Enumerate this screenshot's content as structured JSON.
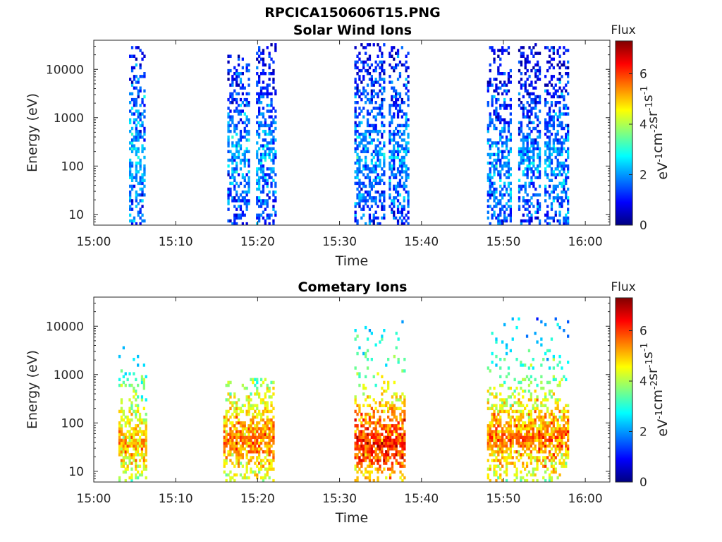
{
  "figure_title": "RPCICA150606T15.PNG",
  "chart_data": [
    {
      "type": "heatmap",
      "title": "Solar Wind Ions",
      "xlabel": "Time",
      "ylabel": "Energy (eV)",
      "x_scale": "time",
      "x_ticks": [
        "15:00",
        "15:10",
        "15:20",
        "15:30",
        "15:40",
        "15:50",
        "16:00"
      ],
      "xlim": [
        "15:00",
        "16:03"
      ],
      "y_scale": "log",
      "y_ticks": [
        10,
        100,
        1000,
        10000
      ],
      "ylim": [
        6,
        40000
      ],
      "colorbar": {
        "title": "Flux",
        "label": "eV",
        "label_sup": [
          "-1",
          "-2",
          "-1",
          "-1"
        ],
        "label_parts": [
          "cm",
          "sr",
          "s"
        ],
        "ticks": [
          0,
          2,
          4,
          6
        ],
        "range": [
          0,
          7.3
        ],
        "colormap": "jet"
      },
      "bursts": [
        {
          "start": "15:04.3",
          "end": "15:06.2",
          "e_min": 6,
          "e_max": 30000,
          "peak_log_e": 2.2,
          "level": 2.2
        },
        {
          "start": "15:16.3",
          "end": "15:19.0",
          "e_min": 6,
          "e_max": 20000,
          "peak_log_e": 2.3,
          "level": 2.0
        },
        {
          "start": "15:19.8",
          "end": "15:22.3",
          "e_min": 6,
          "e_max": 35000,
          "peak_log_e": 2.2,
          "level": 2.0
        },
        {
          "start": "15:31.8",
          "end": "15:35.5",
          "e_min": 6,
          "e_max": 37000,
          "peak_log_e": 2.2,
          "level": 2.0
        },
        {
          "start": "15:36.0",
          "end": "15:38.5",
          "e_min": 6,
          "e_max": 30000,
          "peak_log_e": 2.2,
          "level": 2.0
        },
        {
          "start": "15:48.0",
          "end": "15:50.8",
          "e_min": 6,
          "e_max": 30000,
          "peak_log_e": 2.0,
          "level": 2.0
        },
        {
          "start": "15:51.8",
          "end": "15:54.5",
          "e_min": 6,
          "e_max": 37000,
          "peak_log_e": 2.0,
          "level": 1.9
        },
        {
          "start": "15:55.0",
          "end": "15:57.8",
          "e_min": 6,
          "e_max": 30000,
          "peak_log_e": 2.0,
          "level": 2.0
        }
      ]
    },
    {
      "type": "heatmap",
      "title": "Cometary Ions",
      "xlabel": "Time",
      "ylabel": "Energy (eV)",
      "x_scale": "time",
      "x_ticks": [
        "15:00",
        "15:10",
        "15:20",
        "15:30",
        "15:40",
        "15:50",
        "16:00"
      ],
      "xlim": [
        "15:00",
        "16:03"
      ],
      "y_scale": "log",
      "y_ticks": [
        10,
        100,
        1000,
        10000
      ],
      "ylim": [
        6,
        40000
      ],
      "colorbar": {
        "title": "Flux",
        "label": "eV",
        "label_sup": [
          "-1",
          "-2",
          "-1",
          "-1"
        ],
        "label_parts": [
          "cm",
          "sr",
          "s"
        ],
        "ticks": [
          0,
          2,
          4,
          6
        ],
        "range": [
          0,
          7.3
        ],
        "colormap": "jet"
      },
      "bursts": [
        {
          "start": "15:03.0",
          "end": "15:06.3",
          "e_min": 6,
          "e_max": 5000,
          "peak_log_e": 1.6,
          "level": 5.2
        },
        {
          "start": "15:15.8",
          "end": "15:22.0",
          "e_min": 6,
          "e_max": 900,
          "peak_log_e": 1.7,
          "level": 5.6
        },
        {
          "start": "15:31.8",
          "end": "15:38.0",
          "e_min": 6,
          "e_max": 17000,
          "peak_log_e": 1.6,
          "level": 6.2
        },
        {
          "start": "15:48.0",
          "end": "15:57.8",
          "e_min": 6,
          "e_max": 16000,
          "peak_log_e": 1.7,
          "level": 5.6
        }
      ]
    }
  ]
}
